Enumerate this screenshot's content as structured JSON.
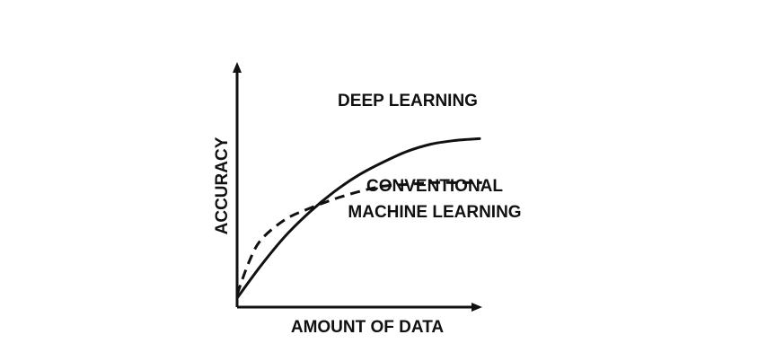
{
  "chart_data": {
    "type": "line",
    "title": "",
    "xlabel": "AMOUNT OF DATA",
    "ylabel": "ACCURACY",
    "grid": false,
    "x_ticks": false,
    "y_ticks": false,
    "xlim": [
      0,
      100
    ],
    "ylim": [
      0,
      100
    ],
    "series": [
      {
        "name": "DEEP LEARNING",
        "line_style": "solid",
        "color": "#111111",
        "x": [
          0,
          10,
          20,
          30,
          40,
          50,
          60,
          70,
          80,
          90,
          100
        ],
        "y": [
          3,
          21,
          37,
          50,
          61,
          70,
          77,
          83,
          87,
          89,
          90
        ]
      },
      {
        "name": "CONVENTIONAL MACHINE LEARNING",
        "line_style": "dashed",
        "color": "#111111",
        "x": [
          0,
          5,
          10,
          20,
          30,
          40,
          50,
          60,
          70,
          80,
          90,
          101
        ],
        "y": [
          5,
          23,
          35,
          46,
          52,
          57,
          61,
          64,
          65,
          66,
          66,
          66
        ]
      }
    ],
    "annotations": [
      {
        "text": "DEEP LEARNING",
        "series": 0
      },
      {
        "text": "CONVENTIONAL",
        "series": 1
      },
      {
        "text": "MACHINE LEARNING",
        "series": 1
      }
    ]
  }
}
